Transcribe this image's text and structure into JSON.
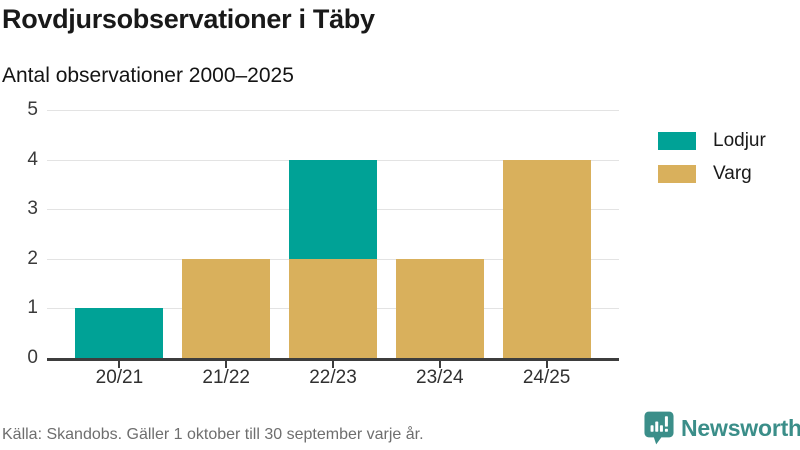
{
  "title": "Rovdjursobservationer i Täby",
  "subtitle": "Antal observationer 2000–2025",
  "footer": {
    "source": "Källa: Skandobs. Gäller 1 oktober till 30 september varje år."
  },
  "branding": {
    "logo_text": "Newsworthy",
    "logo_icon": "bar-chart-speech-bubble-icon",
    "logo_color": "#3b8e89"
  },
  "legend": [
    {
      "label": "Lodjur",
      "color": "#00a296"
    },
    {
      "label": "Varg",
      "color": "#d9b05c"
    }
  ],
  "colors": {
    "lodjur": "#00a296",
    "varg": "#d9b05c",
    "gridline": "#e3e3e3",
    "axis": "#3d3d3d"
  },
  "chart_data": {
    "type": "bar",
    "stacked": true,
    "title": "Rovdjursobservationer i Täby",
    "subtitle": "Antal observationer 2000–2025",
    "categories": [
      "20/21",
      "21/22",
      "22/23",
      "23/24",
      "24/25"
    ],
    "series": [
      {
        "name": "Varg",
        "color": "#d9b05c",
        "values": [
          0,
          2,
          2,
          2,
          4
        ]
      },
      {
        "name": "Lodjur",
        "color": "#00a296",
        "values": [
          1,
          0,
          2,
          0,
          0
        ]
      }
    ],
    "totals": [
      1,
      2,
      4,
      2,
      4
    ],
    "xlabel": "",
    "ylabel": "",
    "ylim": [
      0,
      5
    ],
    "yticks": [
      0,
      1,
      2,
      3,
      4,
      5
    ],
    "grid": true,
    "legend_position": "right"
  }
}
